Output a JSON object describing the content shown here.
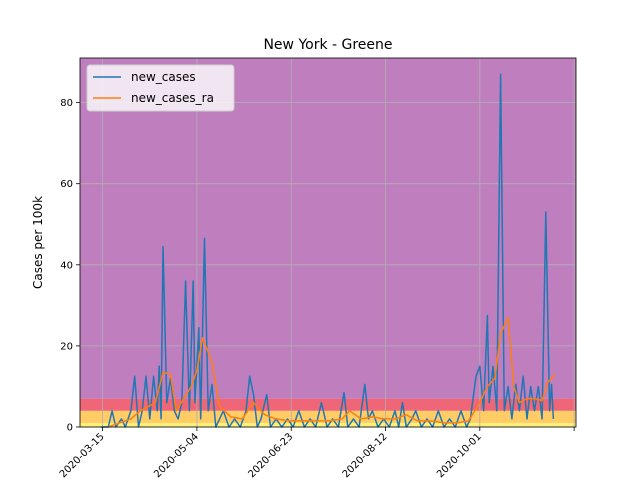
{
  "chart_data": {
    "type": "line",
    "title": "New York - Greene",
    "xlabel": "",
    "ylabel": "Cases per 100k",
    "x_ticks": [
      "2020-03-15",
      "2020-05-04",
      "2020-06-23",
      "2020-08-12",
      "2020-10-01",
      ""
    ],
    "y_ticks": [
      0,
      20,
      40,
      60,
      80
    ],
    "xlim": [
      "2020-03-03",
      "2020-11-21"
    ],
    "ylim": [
      0,
      91
    ],
    "grid": true,
    "legend_position": "top-left",
    "risk_bands": [
      {
        "from": 0,
        "to": 1,
        "color": "#fff176"
      },
      {
        "from": 1,
        "to": 4,
        "color": "#ffcc66"
      },
      {
        "from": 4,
        "to": 7,
        "color": "#ee6677"
      },
      {
        "from": 7,
        "to": 91,
        "color": "#bf7fbf"
      }
    ],
    "series": [
      {
        "name": "new_cases",
        "color": "#1f77b4",
        "points": [
          [
            "2020-03-14",
            0
          ],
          [
            "2020-03-18",
            0
          ],
          [
            "2020-03-20",
            4
          ],
          [
            "2020-03-22",
            0
          ],
          [
            "2020-03-25",
            2
          ],
          [
            "2020-03-27",
            0
          ],
          [
            "2020-03-30",
            4
          ],
          [
            "2020-04-01",
            12.5
          ],
          [
            "2020-04-03",
            0
          ],
          [
            "2020-04-05",
            4
          ],
          [
            "2020-04-07",
            12.5
          ],
          [
            "2020-04-09",
            2
          ],
          [
            "2020-04-11",
            12.5
          ],
          [
            "2020-04-13",
            4
          ],
          [
            "2020-04-14",
            15
          ],
          [
            "2020-04-15",
            2
          ],
          [
            "2020-04-16",
            44.5
          ],
          [
            "2020-04-18",
            6
          ],
          [
            "2020-04-20",
            12
          ],
          [
            "2020-04-22",
            4
          ],
          [
            "2020-04-24",
            2
          ],
          [
            "2020-04-26",
            6
          ],
          [
            "2020-04-28",
            36
          ],
          [
            "2020-04-30",
            4
          ],
          [
            "2020-05-02",
            36
          ],
          [
            "2020-05-03",
            6
          ],
          [
            "2020-05-05",
            24.5
          ],
          [
            "2020-05-06",
            2
          ],
          [
            "2020-05-08",
            46.5
          ],
          [
            "2020-05-10",
            4
          ],
          [
            "2020-05-12",
            10.5
          ],
          [
            "2020-05-14",
            0
          ],
          [
            "2020-05-16",
            2
          ],
          [
            "2020-05-18",
            4
          ],
          [
            "2020-05-21",
            0
          ],
          [
            "2020-05-24",
            2
          ],
          [
            "2020-05-27",
            0
          ],
          [
            "2020-05-30",
            4
          ],
          [
            "2020-06-01",
            12.5
          ],
          [
            "2020-06-03",
            8
          ],
          [
            "2020-06-05",
            0
          ],
          [
            "2020-06-07",
            2
          ],
          [
            "2020-06-10",
            8
          ],
          [
            "2020-06-12",
            0
          ],
          [
            "2020-06-15",
            2
          ],
          [
            "2020-06-18",
            0
          ],
          [
            "2020-06-21",
            2
          ],
          [
            "2020-06-24",
            0
          ],
          [
            "2020-06-27",
            4
          ],
          [
            "2020-06-30",
            0
          ],
          [
            "2020-07-03",
            2
          ],
          [
            "2020-07-06",
            0
          ],
          [
            "2020-07-09",
            6
          ],
          [
            "2020-07-12",
            0
          ],
          [
            "2020-07-15",
            2
          ],
          [
            "2020-07-18",
            0
          ],
          [
            "2020-07-21",
            8.5
          ],
          [
            "2020-07-23",
            0
          ],
          [
            "2020-07-26",
            2
          ],
          [
            "2020-07-29",
            0
          ],
          [
            "2020-08-01",
            10.5
          ],
          [
            "2020-08-03",
            2
          ],
          [
            "2020-08-05",
            4
          ],
          [
            "2020-08-08",
            0
          ],
          [
            "2020-08-11",
            2
          ],
          [
            "2020-08-14",
            0
          ],
          [
            "2020-08-17",
            4
          ],
          [
            "2020-08-19",
            0
          ],
          [
            "2020-08-21",
            6
          ],
          [
            "2020-08-23",
            0
          ],
          [
            "2020-08-26",
            2
          ],
          [
            "2020-08-28",
            4
          ],
          [
            "2020-08-31",
            0
          ],
          [
            "2020-09-03",
            2
          ],
          [
            "2020-09-06",
            0
          ],
          [
            "2020-09-09",
            4
          ],
          [
            "2020-09-12",
            0
          ],
          [
            "2020-09-15",
            2
          ],
          [
            "2020-09-18",
            0
          ],
          [
            "2020-09-21",
            4
          ],
          [
            "2020-09-24",
            0
          ],
          [
            "2020-09-26",
            2
          ],
          [
            "2020-09-29",
            12.5
          ],
          [
            "2020-10-01",
            15
          ],
          [
            "2020-10-03",
            4
          ],
          [
            "2020-10-05",
            27.5
          ],
          [
            "2020-10-06",
            6
          ],
          [
            "2020-10-08",
            15
          ],
          [
            "2020-10-10",
            4
          ],
          [
            "2020-10-12",
            87
          ],
          [
            "2020-10-14",
            4
          ],
          [
            "2020-10-16",
            10
          ],
          [
            "2020-10-18",
            2
          ],
          [
            "2020-10-20",
            10.5
          ],
          [
            "2020-10-22",
            4
          ],
          [
            "2020-10-24",
            12.5
          ],
          [
            "2020-10-26",
            2
          ],
          [
            "2020-10-28",
            10
          ],
          [
            "2020-10-30",
            4
          ],
          [
            "2020-11-01",
            10
          ],
          [
            "2020-11-03",
            2
          ],
          [
            "2020-11-05",
            53
          ],
          [
            "2020-11-07",
            4
          ],
          [
            "2020-11-08",
            10.5
          ],
          [
            "2020-11-09",
            2
          ]
        ]
      },
      {
        "name": "new_cases_ra",
        "color": "#ff7f0e",
        "points": [
          [
            "2020-03-18",
            0
          ],
          [
            "2020-03-24",
            1
          ],
          [
            "2020-03-30",
            2
          ],
          [
            "2020-04-04",
            4
          ],
          [
            "2020-04-08",
            5
          ],
          [
            "2020-04-12",
            6
          ],
          [
            "2020-04-16",
            13.5
          ],
          [
            "2020-04-20",
            13
          ],
          [
            "2020-04-23",
            4
          ],
          [
            "2020-04-27",
            7
          ],
          [
            "2020-05-01",
            10
          ],
          [
            "2020-05-04",
            14
          ],
          [
            "2020-05-07",
            22
          ],
          [
            "2020-05-12",
            16
          ],
          [
            "2020-05-16",
            5
          ],
          [
            "2020-05-22",
            2.5
          ],
          [
            "2020-05-28",
            2
          ],
          [
            "2020-06-03",
            6
          ],
          [
            "2020-06-09",
            3
          ],
          [
            "2020-06-15",
            2
          ],
          [
            "2020-06-22",
            1.5
          ],
          [
            "2020-06-29",
            1.5
          ],
          [
            "2020-07-06",
            1.5
          ],
          [
            "2020-07-13",
            1.5
          ],
          [
            "2020-07-20",
            2
          ],
          [
            "2020-07-24",
            4
          ],
          [
            "2020-07-30",
            2
          ],
          [
            "2020-08-05",
            2.5
          ],
          [
            "2020-08-11",
            2
          ],
          [
            "2020-08-17",
            2
          ],
          [
            "2020-08-23",
            3
          ],
          [
            "2020-08-29",
            1.5
          ],
          [
            "2020-09-05",
            1.5
          ],
          [
            "2020-09-12",
            1
          ],
          [
            "2020-09-19",
            1
          ],
          [
            "2020-09-25",
            1.5
          ],
          [
            "2020-10-01",
            6
          ],
          [
            "2020-10-05",
            10
          ],
          [
            "2020-10-09",
            12
          ],
          [
            "2020-10-12",
            23
          ],
          [
            "2020-10-16",
            27
          ],
          [
            "2020-10-19",
            10
          ],
          [
            "2020-10-22",
            6
          ],
          [
            "2020-10-26",
            7
          ],
          [
            "2020-10-30",
            7
          ],
          [
            "2020-11-03",
            6.5
          ],
          [
            "2020-11-06",
            11
          ],
          [
            "2020-11-10",
            13
          ]
        ]
      }
    ]
  }
}
